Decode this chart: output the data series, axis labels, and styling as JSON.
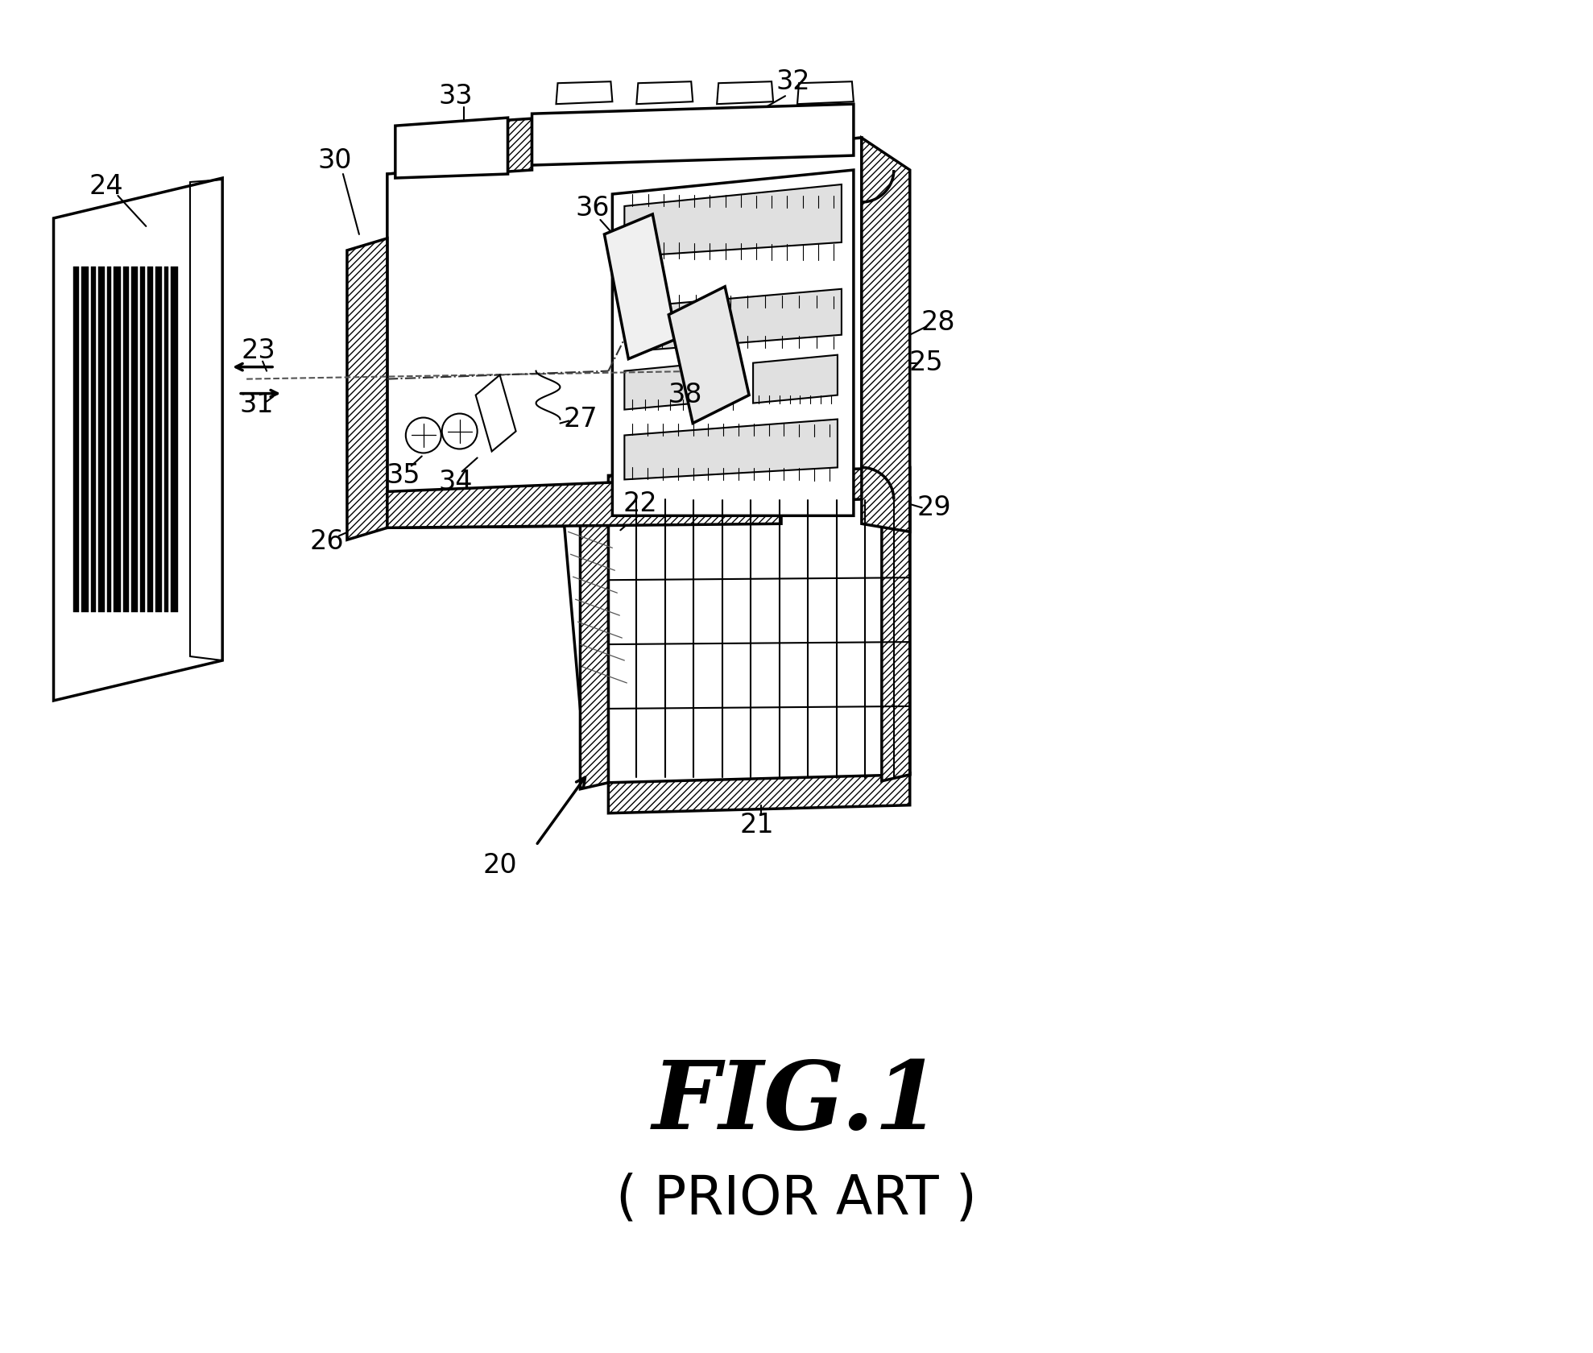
{
  "title": "FIG.1",
  "subtitle": "( PRIOR ART )",
  "bg_color": "#ffffff",
  "line_color": "#000000",
  "fig_width": 19.78,
  "fig_height": 16.8
}
